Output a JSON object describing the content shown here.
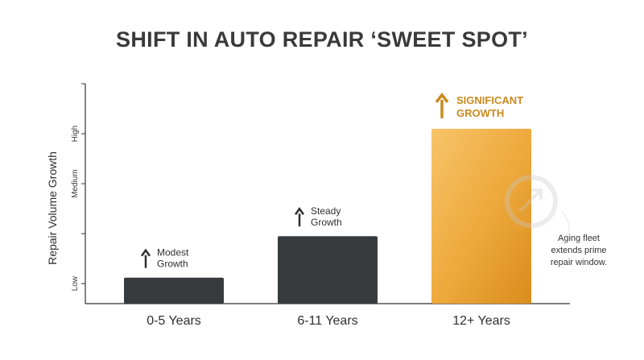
{
  "chart_data": {
    "type": "bar",
    "title": "SHIFT IN AUTO REPAIR ‘SWEET SPOT’",
    "xlabel": "",
    "ylabel": "Repair Volume Growth",
    "categories": [
      "0-5 Years",
      "6-11 Years",
      "12+ Years"
    ],
    "values": [
      1.12,
      1.95,
      4.1
    ],
    "ylim": [
      0.6,
      5.0
    ],
    "y_ticks": [
      {
        "value": 1,
        "label": "Low"
      },
      {
        "value": 3,
        "label": "Medium"
      },
      {
        "value": 4,
        "label": "High"
      }
    ],
    "bar_annotations": [
      {
        "lines": [
          "Modest",
          "Growth"
        ]
      },
      {
        "lines": [
          "Steady",
          "Growth"
        ]
      },
      {
        "lines": [
          "SIGNIFICANT",
          "GROWTH"
        ]
      }
    ],
    "side_note": [
      "Aging fleet",
      "extends prime",
      "repair window."
    ],
    "grid": false,
    "colors": {
      "bar_dark": "#373b3e",
      "bar_highlight": "#f2b24a",
      "highlight_text": "#c98a1d",
      "axis": "#333333"
    }
  }
}
